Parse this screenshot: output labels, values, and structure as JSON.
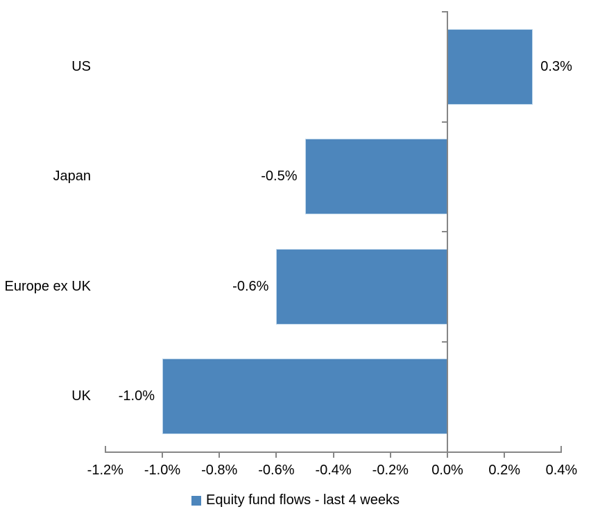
{
  "chart_data": {
    "type": "bar",
    "orientation": "horizontal",
    "title": "",
    "categories": [
      "US",
      "Japan",
      "Europe ex UK",
      "UK"
    ],
    "values": [
      0.3,
      -0.5,
      -0.6,
      -1.0
    ],
    "data_labels": [
      "0.3%",
      "-0.5%",
      "-0.6%",
      "-1.0%"
    ],
    "x_tick_values": [
      -1.2,
      -1.0,
      -0.8,
      -0.6,
      -0.4,
      -0.2,
      0.0,
      0.2,
      0.4
    ],
    "x_tick_labels": [
      "-1.2%",
      "-1.0%",
      "-0.8%",
      "-0.6%",
      "-0.4%",
      "-0.2%",
      "0.0%",
      "0.2%",
      "0.4%"
    ],
    "xlim": [
      -1.2,
      0.4
    ],
    "grid": false,
    "legend_position": "bottom",
    "legend": [
      "Equity fund flows - last 4 weeks"
    ],
    "colors": {
      "bar": "#4D86BC",
      "axis": "#868686",
      "text": "#000000",
      "background": "#FFFFFF"
    }
  }
}
